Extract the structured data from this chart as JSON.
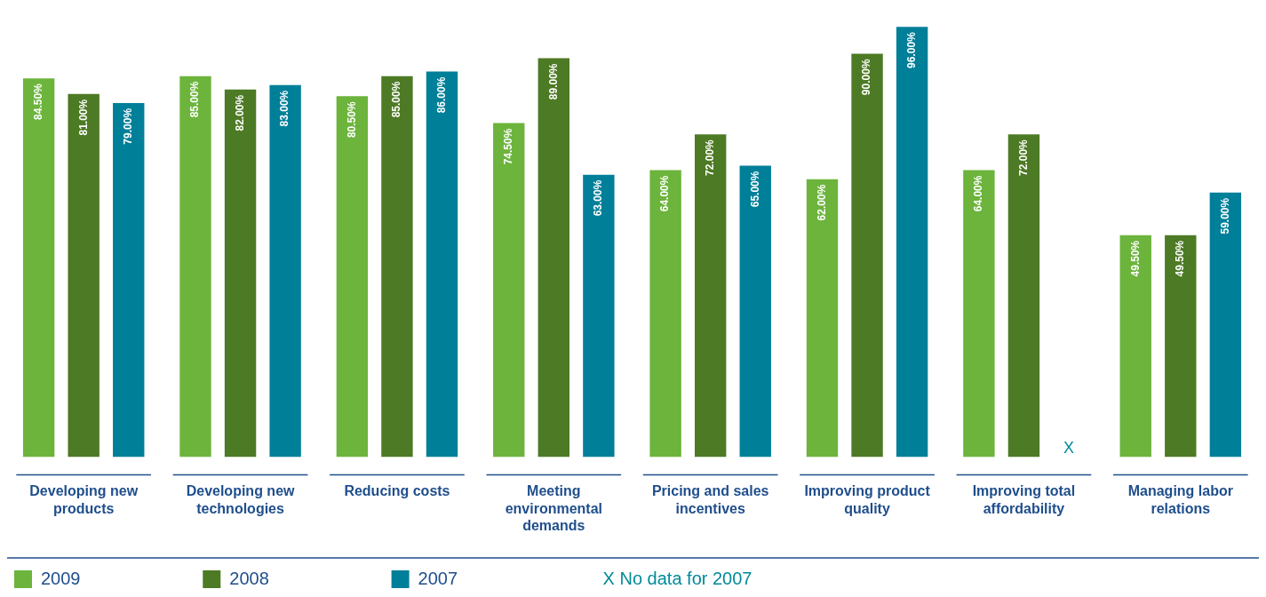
{
  "chart_data": {
    "type": "bar",
    "categories": [
      "Developing new products",
      "Developing new technologies",
      "Reducing costs",
      "Meeting environmental demands",
      "Pricing and sales incentives",
      "Improving product quality",
      "Improving total affordability",
      "Managing labor relations"
    ],
    "series": [
      {
        "name": "2009",
        "color": "#6cb43c",
        "values": [
          84.5,
          85,
          80.5,
          74.5,
          64,
          62,
          64,
          49.5
        ],
        "value_labels": [
          "84.50%",
          "85.00%",
          "80.50%",
          "74.50%",
          "64.00%",
          "62.00%",
          "64.00%",
          "49.50%"
        ]
      },
      {
        "name": "2008",
        "color": "#4d7a24",
        "values": [
          81,
          82,
          85,
          89,
          72,
          90,
          72,
          49.5
        ],
        "value_labels": [
          "81.00%",
          "82.00%",
          "85.00%",
          "89.00%",
          "72.00%",
          "90.00%",
          "72.00%",
          "49.50%"
        ]
      },
      {
        "name": "2007",
        "color": "#007f99",
        "values": [
          79,
          83,
          86,
          63,
          65,
          96,
          null,
          59
        ],
        "value_labels": [
          "79.00%",
          "83.00%",
          "86.00%",
          "63.00%",
          "65.00%",
          "96.00%",
          null,
          "59.00%"
        ]
      }
    ],
    "grid": false,
    "legend": "bottom",
    "annotations": [
      {
        "text": "X",
        "x": "Improving total affordability",
        "y": 0
      },
      "X No data for 2007"
    ]
  }
}
